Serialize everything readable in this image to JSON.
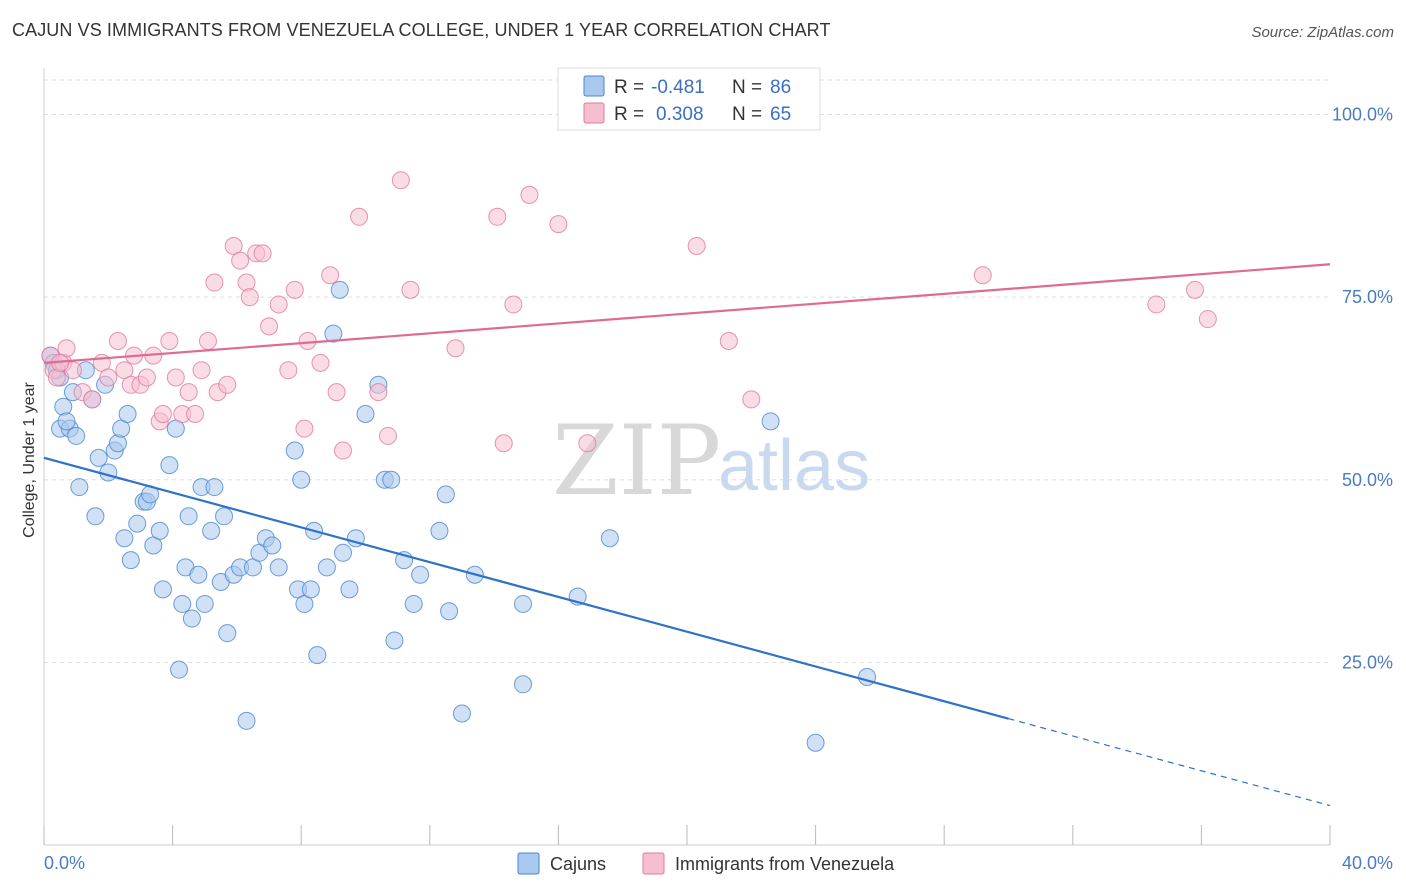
{
  "header": {
    "title": "CAJUN VS IMMIGRANTS FROM VENEZUELA COLLEGE, UNDER 1 YEAR CORRELATION CHART",
    "source": "Source: ZipAtlas.com"
  },
  "watermark": {
    "zip": "ZIP",
    "atlas": "atlas"
  },
  "colors": {
    "cajun_fill": "#a9c8ee",
    "cajun_stroke": "#4a86d0",
    "cajun_line": "#2f72c8",
    "ven_fill": "#f6bfd0",
    "ven_stroke": "#e07aa0",
    "ven_line": "#e06a96",
    "grid": "#dddddd",
    "axis_text": "#4a7cc4"
  },
  "legend": {
    "rows": [
      {
        "r_label": "R =",
        "r_value": "-0.481",
        "n_label": "N =",
        "n_value": "86"
      },
      {
        "r_label": "R =",
        "r_value": "0.308",
        "n_label": "N =",
        "n_value": "65"
      }
    ]
  },
  "chart_data": {
    "type": "scatter",
    "xlabel": "",
    "ylabel": "College, Under 1 year",
    "xlim": [
      0,
      40
    ],
    "ylim": [
      0,
      105
    ],
    "x_tick_labels": [
      "0.0%",
      "40.0%"
    ],
    "y_ticks": [
      25,
      50,
      75,
      100
    ],
    "y_tick_labels": [
      "25.0%",
      "50.0%",
      "75.0%",
      "100.0%"
    ],
    "grid": true,
    "legend_position": "top-center",
    "series": [
      {
        "name": "Cajuns",
        "trend": {
          "x": [
            0,
            30
          ],
          "y": [
            53,
            17.3
          ],
          "dashed_to": [
            40,
            5.4
          ]
        },
        "points": [
          [
            0.2,
            67
          ],
          [
            0.3,
            66
          ],
          [
            0.4,
            65
          ],
          [
            0.5,
            64
          ],
          [
            0.6,
            60
          ],
          [
            0.5,
            57
          ],
          [
            0.8,
            57
          ],
          [
            1.0,
            56
          ],
          [
            0.7,
            58
          ],
          [
            0.9,
            62
          ],
          [
            1.1,
            49
          ],
          [
            1.3,
            65
          ],
          [
            1.5,
            61
          ],
          [
            1.7,
            53
          ],
          [
            1.9,
            63
          ],
          [
            2.0,
            51
          ],
          [
            2.2,
            54
          ],
          [
            2.3,
            55
          ],
          [
            2.4,
            57
          ],
          [
            2.6,
            59
          ],
          [
            1.6,
            45
          ],
          [
            2.5,
            42
          ],
          [
            2.7,
            39
          ],
          [
            2.9,
            44
          ],
          [
            3.1,
            47
          ],
          [
            3.2,
            47
          ],
          [
            3.3,
            48
          ],
          [
            3.4,
            41
          ],
          [
            3.6,
            43
          ],
          [
            3.7,
            35
          ],
          [
            3.9,
            52
          ],
          [
            4.1,
            57
          ],
          [
            4.2,
            24
          ],
          [
            4.3,
            33
          ],
          [
            4.4,
            38
          ],
          [
            4.5,
            45
          ],
          [
            4.6,
            31
          ],
          [
            4.8,
            37
          ],
          [
            4.9,
            49
          ],
          [
            5.0,
            33
          ],
          [
            5.2,
            43
          ],
          [
            5.3,
            49
          ],
          [
            5.5,
            36
          ],
          [
            5.6,
            45
          ],
          [
            5.7,
            29
          ],
          [
            5.9,
            37
          ],
          [
            6.1,
            38
          ],
          [
            6.3,
            17
          ],
          [
            6.5,
            38
          ],
          [
            6.7,
            40
          ],
          [
            6.9,
            42
          ],
          [
            7.1,
            41
          ],
          [
            7.3,
            38
          ],
          [
            7.8,
            54
          ],
          [
            7.9,
            35
          ],
          [
            8.0,
            50
          ],
          [
            8.1,
            33
          ],
          [
            8.3,
            35
          ],
          [
            8.4,
            43
          ],
          [
            8.5,
            26
          ],
          [
            8.8,
            38
          ],
          [
            9.0,
            70
          ],
          [
            9.2,
            76
          ],
          [
            9.3,
            40
          ],
          [
            9.5,
            35
          ],
          [
            9.7,
            42
          ],
          [
            10.0,
            59
          ],
          [
            10.4,
            63
          ],
          [
            10.6,
            50
          ],
          [
            10.8,
            50
          ],
          [
            10.9,
            28
          ],
          [
            11.2,
            39
          ],
          [
            11.5,
            33
          ],
          [
            11.7,
            37
          ],
          [
            12.3,
            43
          ],
          [
            12.5,
            48
          ],
          [
            12.6,
            32
          ],
          [
            13.0,
            18
          ],
          [
            13.4,
            37
          ],
          [
            14.9,
            33
          ],
          [
            14.9,
            22
          ],
          [
            16.6,
            34
          ],
          [
            17.6,
            42
          ],
          [
            22.6,
            58
          ],
          [
            24.0,
            14
          ],
          [
            25.6,
            23
          ]
        ]
      },
      {
        "name": "Immigrants from Venezuela",
        "trend": {
          "x": [
            0,
            40
          ],
          "y": [
            66,
            79.5
          ]
        },
        "points": [
          [
            0.2,
            67
          ],
          [
            0.3,
            65
          ],
          [
            0.4,
            64
          ],
          [
            0.6,
            66
          ],
          [
            0.7,
            68
          ],
          [
            0.9,
            65
          ],
          [
            1.2,
            62
          ],
          [
            1.5,
            61
          ],
          [
            1.8,
            66
          ],
          [
            2.0,
            64
          ],
          [
            2.3,
            69
          ],
          [
            2.5,
            65
          ],
          [
            2.7,
            63
          ],
          [
            2.8,
            67
          ],
          [
            3.0,
            63
          ],
          [
            3.2,
            64
          ],
          [
            3.4,
            67
          ],
          [
            3.6,
            58
          ],
          [
            3.7,
            59
          ],
          [
            3.9,
            69
          ],
          [
            4.1,
            64
          ],
          [
            4.3,
            59
          ],
          [
            4.5,
            62
          ],
          [
            4.7,
            59
          ],
          [
            4.9,
            65
          ],
          [
            5.1,
            69
          ],
          [
            5.3,
            77
          ],
          [
            5.4,
            62
          ],
          [
            5.7,
            63
          ],
          [
            5.9,
            82
          ],
          [
            6.1,
            80
          ],
          [
            6.3,
            77
          ],
          [
            6.4,
            75
          ],
          [
            6.6,
            81
          ],
          [
            6.8,
            81
          ],
          [
            7.0,
            71
          ],
          [
            7.3,
            74
          ],
          [
            7.6,
            65
          ],
          [
            7.8,
            76
          ],
          [
            8.1,
            57
          ],
          [
            8.2,
            69
          ],
          [
            8.6,
            66
          ],
          [
            8.9,
            78
          ],
          [
            9.1,
            62
          ],
          [
            9.3,
            54
          ],
          [
            9.8,
            86
          ],
          [
            10.4,
            62
          ],
          [
            10.7,
            56
          ],
          [
            11.1,
            91
          ],
          [
            11.4,
            76
          ],
          [
            12.8,
            68
          ],
          [
            14.1,
            86
          ],
          [
            14.3,
            55
          ],
          [
            14.6,
            74
          ],
          [
            15.1,
            89
          ],
          [
            16.0,
            85
          ],
          [
            16.9,
            55
          ],
          [
            20.3,
            82
          ],
          [
            21.3,
            69
          ],
          [
            22.0,
            61
          ],
          [
            29.2,
            78
          ],
          [
            34.6,
            74
          ],
          [
            35.8,
            76
          ],
          [
            36.2,
            72
          ],
          [
            0.5,
            66
          ]
        ]
      }
    ]
  },
  "bottom_legend": [
    {
      "label": "Cajuns"
    },
    {
      "label": "Immigrants from Venezuela"
    }
  ]
}
